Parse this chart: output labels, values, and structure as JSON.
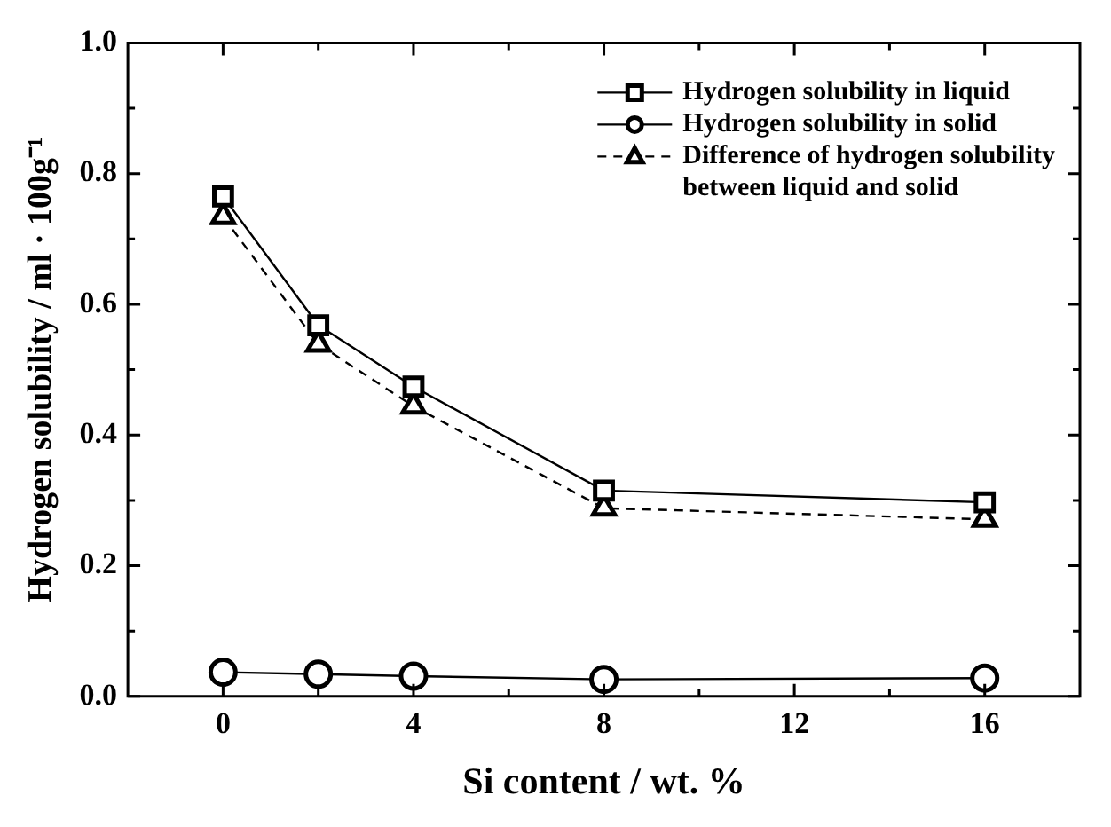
{
  "chart_data": {
    "type": "line",
    "xlabel": "Si content / wt. %",
    "ylabel": "Hydrogen solubility / ml · 100g⁻¹",
    "x": [
      0,
      2,
      4,
      8,
      16
    ],
    "series": [
      {
        "name": "Hydrogen solubility in liquid",
        "color": "#000000",
        "marker": "square",
        "line_style": "solid",
        "values": [
          0.765,
          0.568,
          0.474,
          0.315,
          0.297
        ]
      },
      {
        "name": "Hydrogen solubility in solid",
        "color": "#000000",
        "marker": "circle",
        "line_style": "solid",
        "values": [
          0.037,
          0.034,
          0.031,
          0.026,
          0.028
        ]
      },
      {
        "name": "Difference of hydrogen solubility between liquid and solid",
        "color": "#000000",
        "marker": "triangle",
        "line_style": "dashed",
        "values": [
          0.734,
          0.539,
          0.444,
          0.288,
          0.271
        ]
      }
    ],
    "xlim": [
      -2,
      18
    ],
    "xticks": [
      0,
      {
        "value": 2,
        "label": null
      },
      4,
      {
        "value": 6,
        "label": null
      },
      8,
      {
        "value": 10,
        "label": null
      },
      12,
      {
        "value": 14,
        "label": null
      },
      16
    ],
    "ylim": [
      0,
      1.0
    ],
    "yticks": [
      {
        "value": 0,
        "label": "0.0"
      },
      {
        "value": 0.1,
        "label": null
      },
      {
        "value": 0.2,
        "label": "0.2"
      },
      {
        "value": 0.3,
        "label": null
      },
      {
        "value": 0.4,
        "label": "0.4"
      },
      {
        "value": 0.5,
        "label": null
      },
      {
        "value": 0.6,
        "label": "0.6"
      },
      {
        "value": 0.7,
        "label": null
      },
      {
        "value": 0.8,
        "label": "0.8"
      },
      {
        "value": 0.9,
        "label": null
      },
      {
        "value": 1.0,
        "label": "1.0"
      }
    ],
    "legend": "top right"
  }
}
